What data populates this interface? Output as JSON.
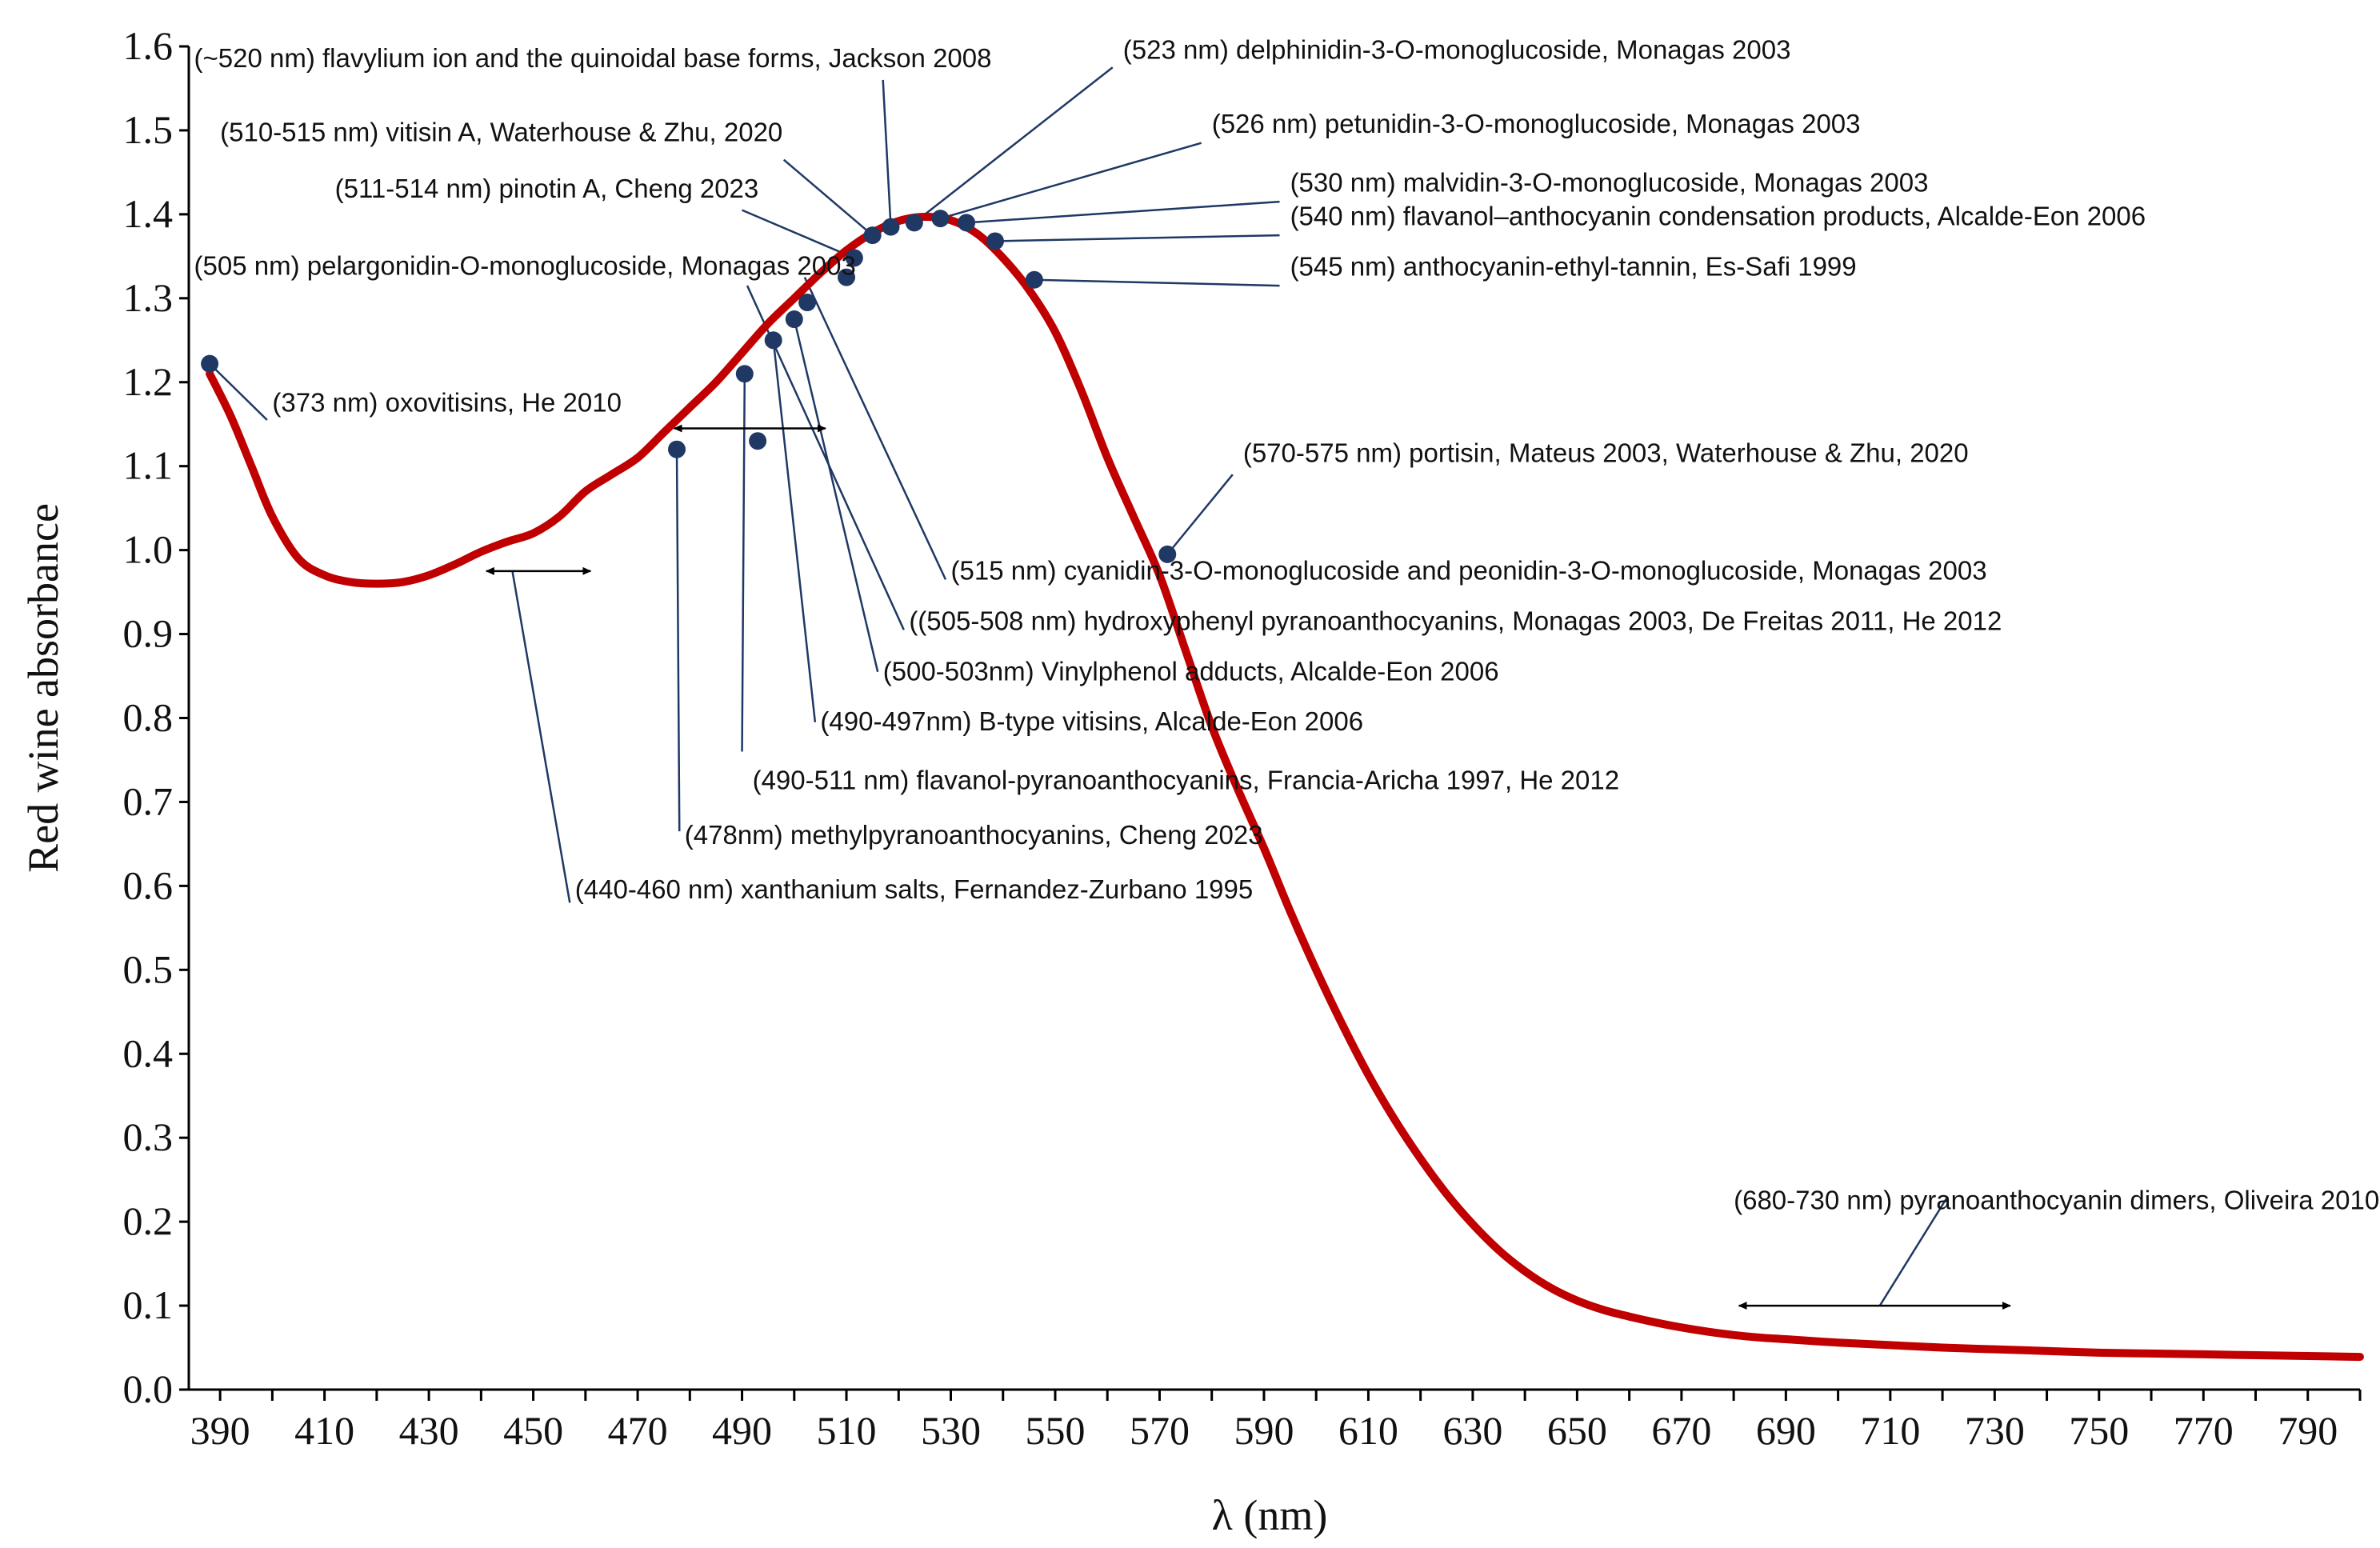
{
  "chart_data": {
    "type": "line",
    "title": "",
    "xlabel": "λ (nm)",
    "ylabel": "Red wine absorbance",
    "xlim": [
      384,
      800
    ],
    "ylim": [
      0.0,
      1.6
    ],
    "grid": false,
    "x_ticks": [
      "390",
      "410",
      "430",
      "450",
      "470",
      "490",
      "510",
      "530",
      "550",
      "570",
      "590",
      "610",
      "630",
      "650",
      "670",
      "690",
      "710",
      "730",
      "750",
      "770",
      "790"
    ],
    "y_ticks": [
      "0.0",
      "0.1",
      "0.2",
      "0.3",
      "0.4",
      "0.5",
      "0.6",
      "0.7",
      "0.8",
      "0.9",
      "1.0",
      "1.1",
      "1.2",
      "1.3",
      "1.4",
      "1.5",
      "1.6"
    ],
    "line_color": "#c00000",
    "marker_color": "#1f3864",
    "leader_color": "#1f3864",
    "series": [
      {
        "name": "Red wine absorbance",
        "x": [
          388,
          392,
          396,
          400,
          405,
          410,
          415,
          420,
          425,
          430,
          435,
          440,
          445,
          450,
          455,
          460,
          465,
          470,
          475,
          480,
          485,
          490,
          495,
          500,
          505,
          510,
          515,
          520,
          525,
          530,
          535,
          540,
          545,
          550,
          555,
          560,
          565,
          570,
          575,
          580,
          585,
          590,
          595,
          600,
          605,
          610,
          615,
          620,
          625,
          630,
          635,
          640,
          645,
          650,
          655,
          660,
          665,
          670,
          675,
          680,
          685,
          690,
          700,
          710,
          720,
          730,
          740,
          750,
          760,
          770,
          780,
          790,
          800
        ],
        "y": [
          1.21,
          1.16,
          1.1,
          1.04,
          0.99,
          0.97,
          0.962,
          0.96,
          0.962,
          0.97,
          0.983,
          0.998,
          1.01,
          1.02,
          1.04,
          1.07,
          1.09,
          1.11,
          1.14,
          1.17,
          1.2,
          1.235,
          1.27,
          1.3,
          1.33,
          1.357,
          1.378,
          1.392,
          1.397,
          1.393,
          1.377,
          1.348,
          1.31,
          1.26,
          1.19,
          1.11,
          1.04,
          0.97,
          0.88,
          0.79,
          0.715,
          0.645,
          0.57,
          0.5,
          0.435,
          0.375,
          0.322,
          0.275,
          0.233,
          0.197,
          0.166,
          0.141,
          0.121,
          0.106,
          0.095,
          0.087,
          0.08,
          0.074,
          0.069,
          0.065,
          0.062,
          0.06,
          0.056,
          0.053,
          0.05,
          0.048,
          0.046,
          0.044,
          0.043,
          0.042,
          0.041,
          0.04,
          0.039
        ]
      }
    ],
    "points": [
      {
        "x": 388.0,
        "y": 1.222
      },
      {
        "x": 477.5,
        "y": 1.12
      },
      {
        "x": 493.0,
        "y": 1.13
      },
      {
        "x": 490.5,
        "y": 1.21
      },
      {
        "x": 496.0,
        "y": 1.25
      },
      {
        "x": 500.0,
        "y": 1.275
      },
      {
        "x": 502.5,
        "y": 1.295
      },
      {
        "x": 510.0,
        "y": 1.325
      },
      {
        "x": 511.5,
        "y": 1.348
      },
      {
        "x": 515.0,
        "y": 1.375
      },
      {
        "x": 518.5,
        "y": 1.385
      },
      {
        "x": 523.0,
        "y": 1.39
      },
      {
        "x": 528.0,
        "y": 1.395
      },
      {
        "x": 533.0,
        "y": 1.39
      },
      {
        "x": 538.5,
        "y": 1.368
      },
      {
        "x": 546.0,
        "y": 1.322
      },
      {
        "x": 571.5,
        "y": 0.995
      }
    ],
    "annotations": [
      {
        "text": "(~520 nm) flavylium ion and the quinoidal base forms, Jackson 2008",
        "x": 385,
        "y": 1.575
      },
      {
        "text": "(523 nm) delphinidin-3-O-monoglucoside, Monagas 2003",
        "x": 563,
        "y": 1.585
      },
      {
        "text": "(510-515 nm) vitisin A, Waterhouse & Zhu, 2020",
        "x": 390,
        "y": 1.487
      },
      {
        "text": "(526 nm) petunidin-3-O-monoglucoside, Monagas 2003",
        "x": 580,
        "y": 1.497
      },
      {
        "text": "(530 nm) malvidin-3-O-monoglucoside, Monagas 2003",
        "x": 595,
        "y": 1.427
      },
      {
        "text": "(511-514 nm) pinotin A, Cheng 2023",
        "x": 412,
        "y": 1.42
      },
      {
        "text": "(540 nm) flavanol–anthocyanin condensation products, Alcalde-Eon 2006",
        "x": 595,
        "y": 1.387
      },
      {
        "text": "(505 nm) pelargonidin-O-monoglucoside, Monagas 2003",
        "x": 385,
        "y": 1.328
      },
      {
        "text": "(545 nm) anthocyanin-ethyl-tannin, Es-Safi 1999",
        "x": 595,
        "y": 1.327
      },
      {
        "text": "(373 nm) oxovitisins, He 2010",
        "x": 400,
        "y": 1.165
      },
      {
        "text": "(570-575 nm) portisin, Mateus 2003, Waterhouse & Zhu, 2020",
        "x": 586,
        "y": 1.105
      },
      {
        "text": "(515 nm) cyanidin-3-O-monoglucoside and peonidin-3-O-monoglucoside, Monagas 2003",
        "x": 530,
        "y": 0.965
      },
      {
        "text": "((505-508 nm) hydroxyphenyl pyranoanthocyanins, Monagas 2003, De  Freitas 2011, He 2012",
        "x": 522,
        "y": 0.905
      },
      {
        "text": "(500-503nm) Vinylphenol adducts, Alcalde-Eon 2006",
        "x": 517,
        "y": 0.845
      },
      {
        "text": "(490-497nm) B-type vitisins, Alcalde-Eon 2006",
        "x": 505,
        "y": 0.785
      },
      {
        "text": "(490-511 nm) flavanol-pyranoanthocyanins, Francia-Aricha 1997, He 2012",
        "x": 492,
        "y": 0.715
      },
      {
        "text": "(478nm) methylpyranoanthocyanins, Cheng 2023",
        "x": 479,
        "y": 0.65
      },
      {
        "text": "(440-460 nm) xanthanium salts, Fernandez-Zurbano 1995",
        "x": 458,
        "y": 0.585
      },
      {
        "text": "(680-730 nm) pyranoanthocyanin dimers, Oliveira 2010",
        "x": 680,
        "y": 0.215
      }
    ],
    "leaders": [
      {
        "from": [
          517,
          1.56
        ],
        "to": [
          518.5,
          1.385
        ]
      },
      {
        "from": [
          561,
          1.575
        ],
        "to": [
          523,
          1.39
        ]
      },
      {
        "from": [
          498,
          1.465
        ],
        "to": [
          515,
          1.375
        ]
      },
      {
        "from": [
          578,
          1.485
        ],
        "to": [
          528,
          1.395
        ]
      },
      {
        "from": [
          593,
          1.415
        ],
        "to": [
          533,
          1.39
        ]
      },
      {
        "from": [
          490,
          1.405
        ],
        "to": [
          511.5,
          1.348
        ]
      },
      {
        "from": [
          593,
          1.375
        ],
        "to": [
          538.5,
          1.368
        ]
      },
      {
        "from": [
          593,
          1.315
        ],
        "to": [
          546,
          1.322
        ]
      },
      {
        "from": [
          399,
          1.155
        ],
        "to": [
          388,
          1.222
        ]
      },
      {
        "from": [
          584,
          1.09
        ],
        "to": [
          571.5,
          0.995
        ]
      },
      {
        "from": [
          529,
          0.965
        ],
        "to": [
          502,
          1.325
        ]
      },
      {
        "from": [
          521,
          0.905
        ],
        "to": [
          491,
          1.315
        ]
      },
      {
        "from": [
          516,
          0.855
        ],
        "to": [
          500,
          1.275
        ]
      },
      {
        "from": [
          504,
          0.795
        ],
        "to": [
          496,
          1.25
        ]
      },
      {
        "from": [
          490,
          0.76
        ],
        "to": [
          490.5,
          1.21
        ]
      },
      {
        "from": [
          478,
          0.665
        ],
        "to": [
          477.5,
          1.12
        ]
      },
      {
        "from": [
          457,
          0.58
        ],
        "to": [
          446,
          0.975
        ]
      },
      {
        "from": [
          708,
          0.1
        ],
        "to": [
          721,
          0.23
        ]
      }
    ],
    "range_arrows": [
      {
        "x_start": 441,
        "x_end": 461,
        "y": 0.975
      },
      {
        "x_start": 477,
        "x_end": 506,
        "y": 1.145
      },
      {
        "x_start": 681,
        "x_end": 733,
        "y": 0.1
      }
    ]
  }
}
